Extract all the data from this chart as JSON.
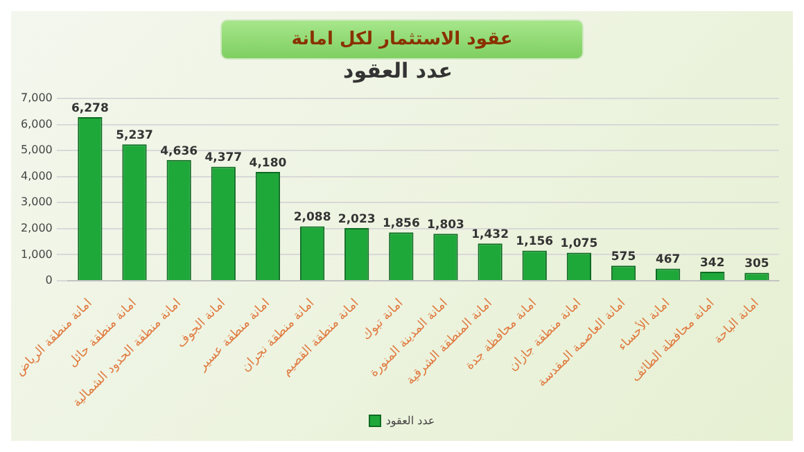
{
  "chart_data": {
    "type": "bar",
    "title": "عقود الاستثمار لكل امانة",
    "subtitle": "عدد العقود",
    "categories": [
      "امانة منطقة الرياض",
      "امانة منطقة حائل",
      "امانة منطقة الحدود الشمالية",
      "امانة الجوف",
      "امانة منطقة عسير",
      "امانة منطقة نجران",
      "امانة منطقة القصيم",
      "امانة تبوك",
      "امانة المدينة المنورة",
      "امانة المنطقة الشرقية",
      "امانة محافظة جدة",
      "امانة منطقة جازان",
      "امانة العاصمة المقدسة",
      "امانة الأحساء",
      "امانة محافظة الطائف",
      "امانة الباحة"
    ],
    "series": [
      {
        "name": "عدد العقود",
        "color": "#1fa83a",
        "values": [
          6278,
          5237,
          4636,
          4377,
          4180,
          2088,
          2023,
          1856,
          1803,
          1432,
          1156,
          1075,
          575,
          467,
          342,
          305
        ],
        "value_labels": [
          "6,278",
          "5,237",
          "4,636",
          "4,377",
          "4,180",
          "2,088",
          "2,023",
          "1,856",
          "1,803",
          "1,432",
          "1,156",
          "1,075",
          "575",
          "467",
          "342",
          "305"
        ]
      }
    ],
    "ylim": [
      0,
      7000
    ],
    "yticks": [
      0,
      {
        "value": 1000,
        "label": "1,000"
      },
      {
        "value": 2000,
        "label": "2,000"
      },
      {
        "value": 3000,
        "label": "3,000"
      },
      {
        "value": 4000,
        "label": "4,000"
      },
      {
        "value": 5000,
        "label": "5,000"
      },
      {
        "value": 6000,
        "label": "6,000"
      },
      {
        "value": 7000,
        "label": "7,000"
      }
    ],
    "grid": "y",
    "legend": "bottom"
  }
}
